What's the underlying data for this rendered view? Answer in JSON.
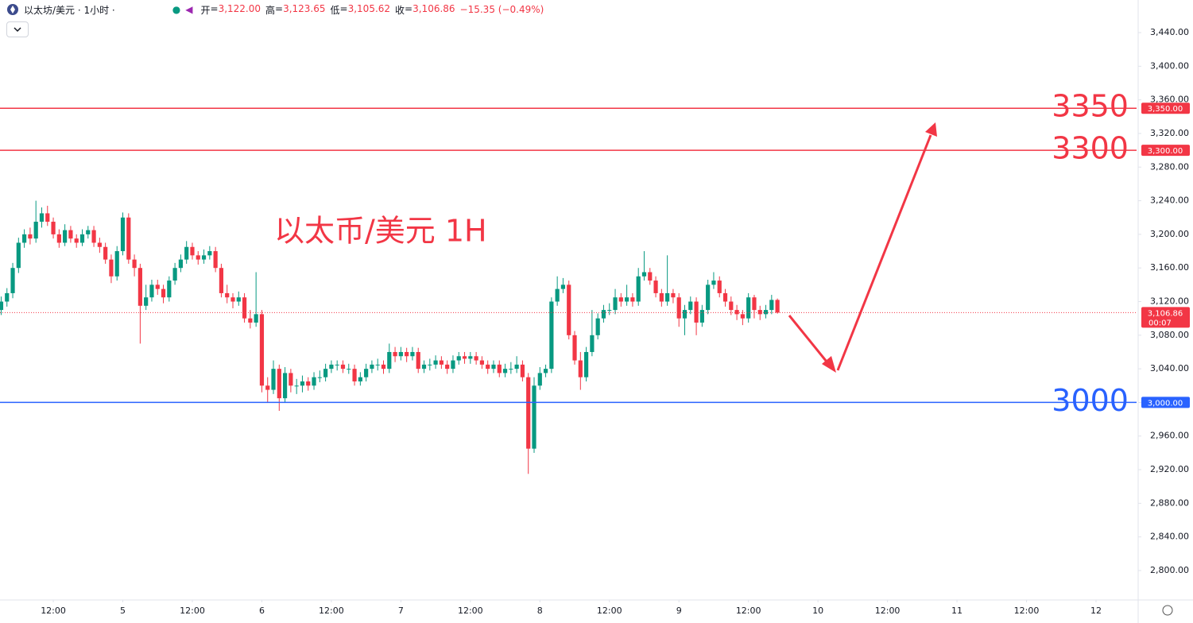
{
  "chart_data": {
    "type": "candlestick",
    "header": {
      "symbol": "以太坊/美元 · 1小时 ·",
      "ohlc": [
        {
          "label": "开",
          "value": "3,122.00"
        },
        {
          "label": "高",
          "value": "3,123.65"
        },
        {
          "label": "低",
          "value": "3,105.62"
        },
        {
          "label": "收",
          "value": "3,106.86"
        }
      ],
      "change": "−15.35 (−0.49%)"
    },
    "annotation": "以太币/美元 1H",
    "up_color": "#089981",
    "down_color": "#f23645",
    "xlim": [
      2.8,
      199
    ],
    "xticks": [
      {
        "value": 12,
        "label": "12:00"
      },
      {
        "value": 24,
        "label": "5"
      },
      {
        "value": 36,
        "label": "12:00"
      },
      {
        "value": 48,
        "label": "6"
      },
      {
        "value": 60,
        "label": "12:00"
      },
      {
        "value": 72,
        "label": "7"
      },
      {
        "value": 84,
        "label": "12:00"
      },
      {
        "value": 96,
        "label": "8"
      },
      {
        "value": 108,
        "label": "12:00"
      },
      {
        "value": 120,
        "label": "9"
      },
      {
        "value": 132,
        "label": "12:00"
      },
      {
        "value": 144,
        "label": "10"
      },
      {
        "value": 156,
        "label": "12:00"
      },
      {
        "value": 168,
        "label": "11"
      },
      {
        "value": 180,
        "label": "12:00"
      },
      {
        "value": 192,
        "label": "12"
      }
    ],
    "ylim": [
      2765,
      3478.8
    ],
    "yticks": [
      {
        "value": 3440,
        "label": "3,440.00"
      },
      {
        "value": 3400,
        "label": "3,400.00"
      },
      {
        "value": 3360,
        "label": "3,360.00"
      },
      {
        "value": 3320,
        "label": "3,320.00"
      },
      {
        "value": 3280,
        "label": "3,280.00"
      },
      {
        "value": 3240,
        "label": "3,240.00"
      },
      {
        "value": 3200,
        "label": "3,200.00"
      },
      {
        "value": 3160,
        "label": "3,160.00"
      },
      {
        "value": 3120,
        "label": "3,120.00"
      },
      {
        "value": 3080,
        "label": "3,080.00"
      },
      {
        "value": 3040,
        "label": "3,040.00"
      },
      {
        "value": 3000,
        "label": "3,000.00"
      },
      {
        "value": 2960,
        "label": "2,960.00"
      },
      {
        "value": 2920,
        "label": "2,920.00"
      },
      {
        "value": 2880,
        "label": "2,880.00"
      },
      {
        "value": 2840,
        "label": "2,840.00"
      },
      {
        "value": 2800,
        "label": "2,800.00"
      }
    ],
    "grid": false,
    "levels": [
      {
        "value": 3350,
        "tag": "3,350.00",
        "color": "#f23645"
      },
      {
        "value": 3300,
        "tag": "3,300.00",
        "color": "#f23645"
      },
      {
        "value": 3000,
        "tag": "3,000.00",
        "color": "#2962ff"
      }
    ],
    "last_price": {
      "value": 3106.86,
      "label": "3,106.86",
      "countdown": "00:07"
    },
    "x": [
      3,
      4,
      5,
      6,
      7,
      8,
      9,
      10,
      11,
      12,
      13,
      14,
      15,
      16,
      17,
      18,
      19,
      20,
      21,
      22,
      23,
      24,
      25,
      26,
      27,
      28,
      29,
      30,
      31,
      32,
      33,
      34,
      35,
      36,
      37,
      38,
      39,
      40,
      41,
      42,
      43,
      44,
      45,
      46,
      47,
      48,
      49,
      50,
      51,
      52,
      53,
      54,
      55,
      56,
      57,
      58,
      59,
      60,
      61,
      62,
      63,
      64,
      65,
      66,
      67,
      68,
      69,
      70,
      71,
      72,
      73,
      74,
      75,
      76,
      77,
      78,
      79,
      80,
      81,
      82,
      83,
      84,
      85,
      86,
      87,
      88,
      89,
      90,
      91,
      92,
      93,
      94,
      95,
      96,
      97,
      98,
      99,
      100,
      101,
      102,
      103,
      104,
      105,
      106,
      107,
      108,
      109,
      110,
      111,
      112,
      113,
      114,
      115,
      116,
      117,
      118,
      119,
      120,
      121,
      122,
      123,
      124,
      125,
      126,
      127,
      128,
      129,
      130,
      131,
      132,
      133,
      134,
      135,
      136,
      137
    ],
    "open": [
      3110,
      3120,
      3130,
      3160,
      3190,
      3200,
      3195,
      3215,
      3225,
      3215,
      3200,
      3190,
      3205,
      3195,
      3190,
      3200,
      3205,
      3190,
      3185,
      3170,
      3150,
      3180,
      3220,
      3170,
      3160,
      3115,
      3125,
      3140,
      3135,
      3125,
      3145,
      3160,
      3170,
      3185,
      3175,
      3170,
      3175,
      3180,
      3160,
      3130,
      3125,
      3120,
      3125,
      3100,
      3095,
      3105,
      3020,
      3015,
      3040,
      3005,
      3035,
      3020,
      3020,
      3025,
      3020,
      3030,
      3030,
      3040,
      3045,
      3045,
      3040,
      3040,
      3025,
      3030,
      3040,
      3045,
      3045,
      3040,
      3060,
      3055,
      3060,
      3055,
      3060,
      3040,
      3045,
      3045,
      3050,
      3045,
      3040,
      3050,
      3055,
      3052,
      3055,
      3050,
      3045,
      3040,
      3045,
      3035,
      3040,
      3040,
      3045,
      3030,
      2945,
      3020,
      3035,
      3040,
      3120,
      3135,
      3140,
      3080,
      3050,
      3030,
      3060,
      3080,
      3100,
      3110,
      3110,
      3125,
      3120,
      3125,
      3120,
      3150,
      3155,
      3145,
      3130,
      3120,
      3130,
      3125,
      3100,
      3110,
      3120,
      3095,
      3110,
      3140,
      3145,
      3130,
      3120,
      3110,
      3105,
      3100,
      3125,
      3110,
      3105,
      3110,
      3122
    ],
    "high": [
      3126,
      3136,
      3166,
      3196,
      3206,
      3208,
      3240,
      3232,
      3234,
      3220,
      3206,
      3212,
      3210,
      3200,
      3206,
      3210,
      3210,
      3196,
      3190,
      3176,
      3186,
      3226,
      3225,
      3176,
      3165,
      3140,
      3146,
      3146,
      3140,
      3150,
      3166,
      3176,
      3192,
      3190,
      3180,
      3182,
      3186,
      3185,
      3165,
      3140,
      3130,
      3132,
      3130,
      3110,
      3155,
      3110,
      3030,
      3050,
      3045,
      3042,
      3040,
      3028,
      3032,
      3030,
      3036,
      3038,
      3046,
      3050,
      3050,
      3050,
      3046,
      3045,
      3036,
      3046,
      3050,
      3052,
      3050,
      3070,
      3066,
      3066,
      3065,
      3066,
      3065,
      3050,
      3052,
      3056,
      3055,
      3050,
      3056,
      3060,
      3060,
      3060,
      3060,
      3055,
      3050,
      3050,
      3050,
      3046,
      3048,
      3055,
      3050,
      3035,
      3030,
      3042,
      3045,
      3125,
      3150,
      3148,
      3145,
      3085,
      3060,
      3066,
      3110,
      3106,
      3116,
      3118,
      3135,
      3130,
      3140,
      3130,
      3160,
      3180,
      3160,
      3150,
      3135,
      3175,
      3135,
      3130,
      3116,
      3126,
      3125,
      3116,
      3146,
      3155,
      3150,
      3135,
      3126,
      3116,
      3110,
      3130,
      3128,
      3115,
      3116,
      3128,
      3123.65
    ],
    "low": [
      3104,
      3114,
      3124,
      3154,
      3184,
      3188,
      3190,
      3208,
      3210,
      3195,
      3184,
      3186,
      3190,
      3184,
      3186,
      3195,
      3185,
      3178,
      3165,
      3142,
      3145,
      3175,
      3165,
      3150,
      3070,
      3110,
      3120,
      3128,
      3118,
      3120,
      3140,
      3155,
      3165,
      3170,
      3164,
      3165,
      3170,
      3155,
      3125,
      3118,
      3112,
      3115,
      3095,
      3088,
      3090,
      3012,
      3000,
      3010,
      2990,
      3000,
      3012,
      3010,
      3012,
      3014,
      3015,
      3024,
      3025,
      3035,
      3038,
      3035,
      3034,
      3020,
      3020,
      3025,
      3035,
      3038,
      3034,
      3035,
      3048,
      3050,
      3048,
      3050,
      3035,
      3035,
      3038,
      3040,
      3040,
      3034,
      3035,
      3045,
      3046,
      3046,
      3045,
      3040,
      3034,
      3035,
      3030,
      3030,
      3034,
      3035,
      3025,
      2915,
      2940,
      3015,
      3030,
      3035,
      3115,
      3130,
      3075,
      3045,
      3015,
      3025,
      3055,
      3075,
      3095,
      3104,
      3105,
      3114,
      3115,
      3114,
      3115,
      3145,
      3140,
      3125,
      3114,
      3115,
      3118,
      3090,
      3080,
      3105,
      3080,
      3090,
      3105,
      3135,
      3125,
      3114,
      3104,
      3098,
      3092,
      3095,
      3100,
      3098,
      3100,
      3105,
      3105.62
    ],
    "close": [
      3120,
      3130,
      3160,
      3190,
      3200,
      3195,
      3215,
      3225,
      3215,
      3200,
      3190,
      3205,
      3195,
      3190,
      3200,
      3205,
      3190,
      3185,
      3170,
      3150,
      3180,
      3220,
      3170,
      3160,
      3115,
      3125,
      3140,
      3135,
      3125,
      3145,
      3160,
      3170,
      3185,
      3175,
      3170,
      3175,
      3180,
      3160,
      3130,
      3125,
      3120,
      3125,
      3100,
      3095,
      3105,
      3020,
      3015,
      3040,
      3005,
      3035,
      3020,
      3020,
      3025,
      3020,
      3030,
      3030,
      3040,
      3045,
      3045,
      3040,
      3040,
      3025,
      3030,
      3040,
      3045,
      3045,
      3040,
      3060,
      3055,
      3060,
      3055,
      3060,
      3040,
      3045,
      3045,
      3050,
      3045,
      3040,
      3050,
      3055,
      3052,
      3055,
      3050,
      3045,
      3040,
      3045,
      3035,
      3040,
      3040,
      3045,
      3030,
      2945,
      3020,
      3035,
      3040,
      3120,
      3135,
      3140,
      3080,
      3050,
      3030,
      3060,
      3080,
      3100,
      3110,
      3110,
      3125,
      3120,
      3125,
      3120,
      3150,
      3155,
      3145,
      3130,
      3120,
      3130,
      3125,
      3100,
      3110,
      3120,
      3095,
      3110,
      3140,
      3145,
      3130,
      3120,
      3110,
      3105,
      3100,
      3125,
      3110,
      3105,
      3110,
      3122,
      3106.86
    ]
  }
}
